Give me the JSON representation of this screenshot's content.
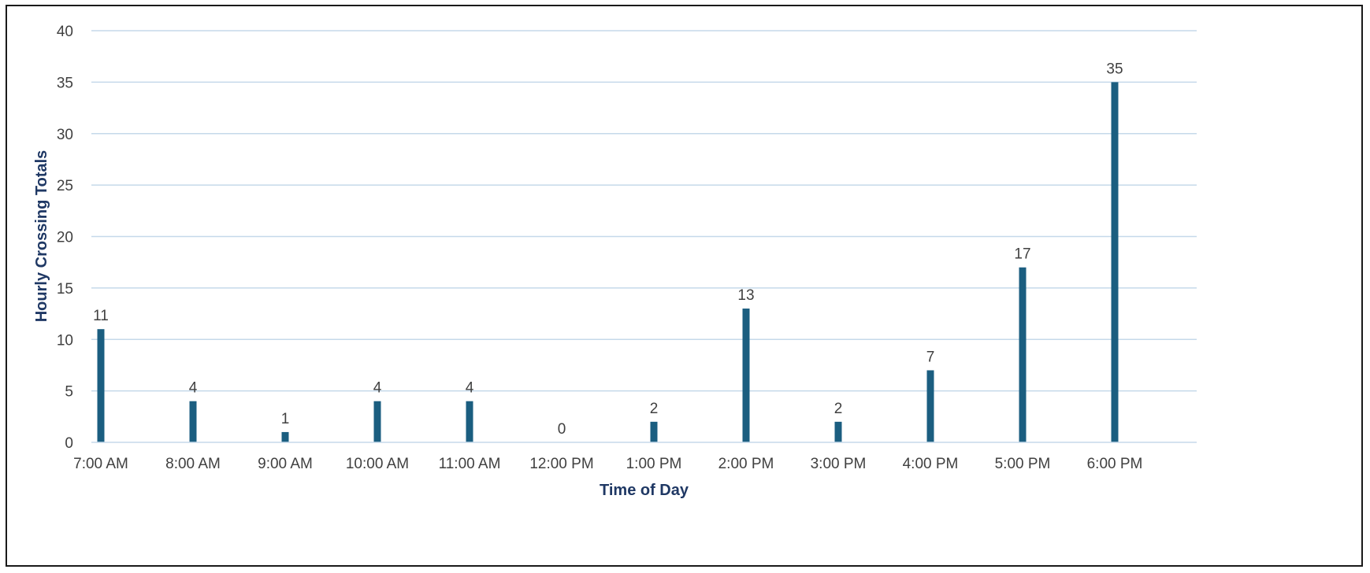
{
  "chart_data": {
    "type": "bar",
    "title": "",
    "xlabel": "Time of Day",
    "ylabel": "Hourly Crossing Totals",
    "categories": [
      "7:00 AM",
      "8:00 AM",
      "9:00 AM",
      "10:00 AM",
      "11:00 AM",
      "12:00 PM",
      "1:00 PM",
      "2:00 PM",
      "3:00 PM",
      "4:00 PM",
      "5:00 PM",
      "6:00 PM"
    ],
    "series": [
      {
        "values": [
          11,
          4,
          1,
          4,
          4,
          0,
          2,
          13,
          2,
          7,
          17,
          35
        ],
        "color": "#1b5e80"
      }
    ],
    "ylim": [
      0,
      40
    ],
    "yticks": [
      0,
      5,
      10,
      15,
      20,
      25,
      30,
      35,
      40
    ],
    "grid": true,
    "gridColor": "#c5d9ea",
    "data_labels": true
  }
}
